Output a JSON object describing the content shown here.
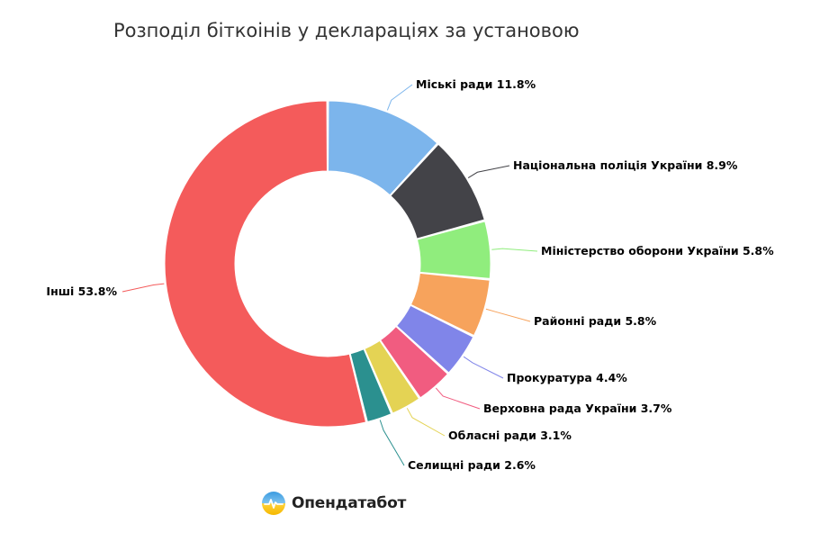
{
  "title": "Розподіл біткоінів у деклараціях за установою",
  "brand": {
    "name": "Опендатабот",
    "logo_icon": "opendatabot-logo-icon"
  },
  "chart_data": {
    "type": "pie",
    "donut": true,
    "title": "Розподіл біткоінів у деклараціях за установою",
    "unit": "%",
    "series": [
      {
        "name": "Міські ради",
        "value": 11.8,
        "color": "#7cb5ec"
      },
      {
        "name": "Національна поліція України",
        "value": 8.9,
        "color": "#434348"
      },
      {
        "name": "Міністерство оборони України",
        "value": 5.8,
        "color": "#90ed7d"
      },
      {
        "name": "Районні ради",
        "value": 5.8,
        "color": "#f7a35c"
      },
      {
        "name": "Прокуратура",
        "value": 4.4,
        "color": "#8085e9"
      },
      {
        "name": "Верховна рада України",
        "value": 3.7,
        "color": "#f15c80"
      },
      {
        "name": "Обласні ради",
        "value": 3.1,
        "color": "#e4d354"
      },
      {
        "name": "Селищні ради",
        "value": 2.6,
        "color": "#2b908f"
      },
      {
        "name": "Інші",
        "value": 53.8,
        "color": "#f45b5b"
      }
    ]
  }
}
